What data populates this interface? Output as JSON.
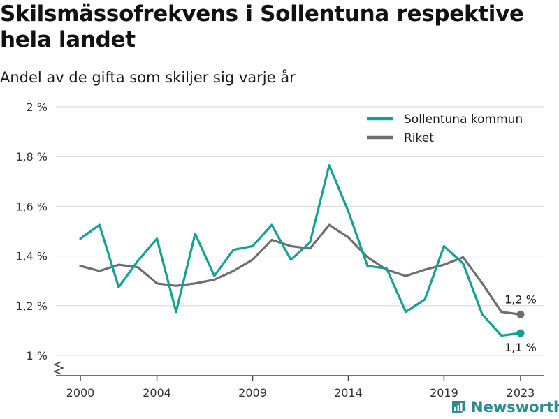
{
  "title": "Skilsmässofrekvens i Sollentuna respektive hela landet",
  "subtitle": "Andel av de gifta som skiljer sig varje år",
  "brand": "Newsworthy",
  "chart_data": {
    "type": "line",
    "x": [
      2000,
      2001,
      2002,
      2003,
      2004,
      2005,
      2006,
      2007,
      2008,
      2009,
      2010,
      2011,
      2012,
      2013,
      2014,
      2015,
      2016,
      2017,
      2018,
      2019,
      2020,
      2021,
      2022,
      2023
    ],
    "x_ticks": [
      2000,
      2004,
      2009,
      2014,
      2019,
      2023
    ],
    "x_tick_labels": [
      "2000",
      "2004",
      "2009",
      "2014",
      "2019",
      "2023"
    ],
    "ylim": [
      1.0,
      2.0
    ],
    "y_ticks": [
      1.0,
      1.2,
      1.4,
      1.6,
      1.8,
      2.0
    ],
    "y_tick_labels": [
      "1 %",
      "1,2 %",
      "1,4 %",
      "1,6 %",
      "1,8 %",
      "2 %"
    ],
    "y_axis_break": true,
    "grid": true,
    "legend_position": "top-right",
    "series": [
      {
        "name": "Sollentuna kommun",
        "color": "#12a194",
        "values": [
          1.47,
          1.525,
          1.275,
          1.38,
          1.47,
          1.175,
          1.49,
          1.32,
          1.425,
          1.44,
          1.525,
          1.385,
          1.455,
          1.765,
          1.58,
          1.36,
          1.35,
          1.175,
          1.225,
          1.44,
          1.37,
          1.165,
          1.08,
          1.09
        ],
        "end_label": "1,1 %"
      },
      {
        "name": "Riket",
        "color": "#6e6e72",
        "values": [
          1.36,
          1.34,
          1.365,
          1.355,
          1.29,
          1.28,
          1.29,
          1.305,
          1.34,
          1.385,
          1.465,
          1.44,
          1.43,
          1.525,
          1.475,
          1.395,
          1.345,
          1.32,
          1.345,
          1.365,
          1.395,
          1.29,
          1.175,
          1.165
        ],
        "end_label": "1,2 %"
      }
    ]
  }
}
